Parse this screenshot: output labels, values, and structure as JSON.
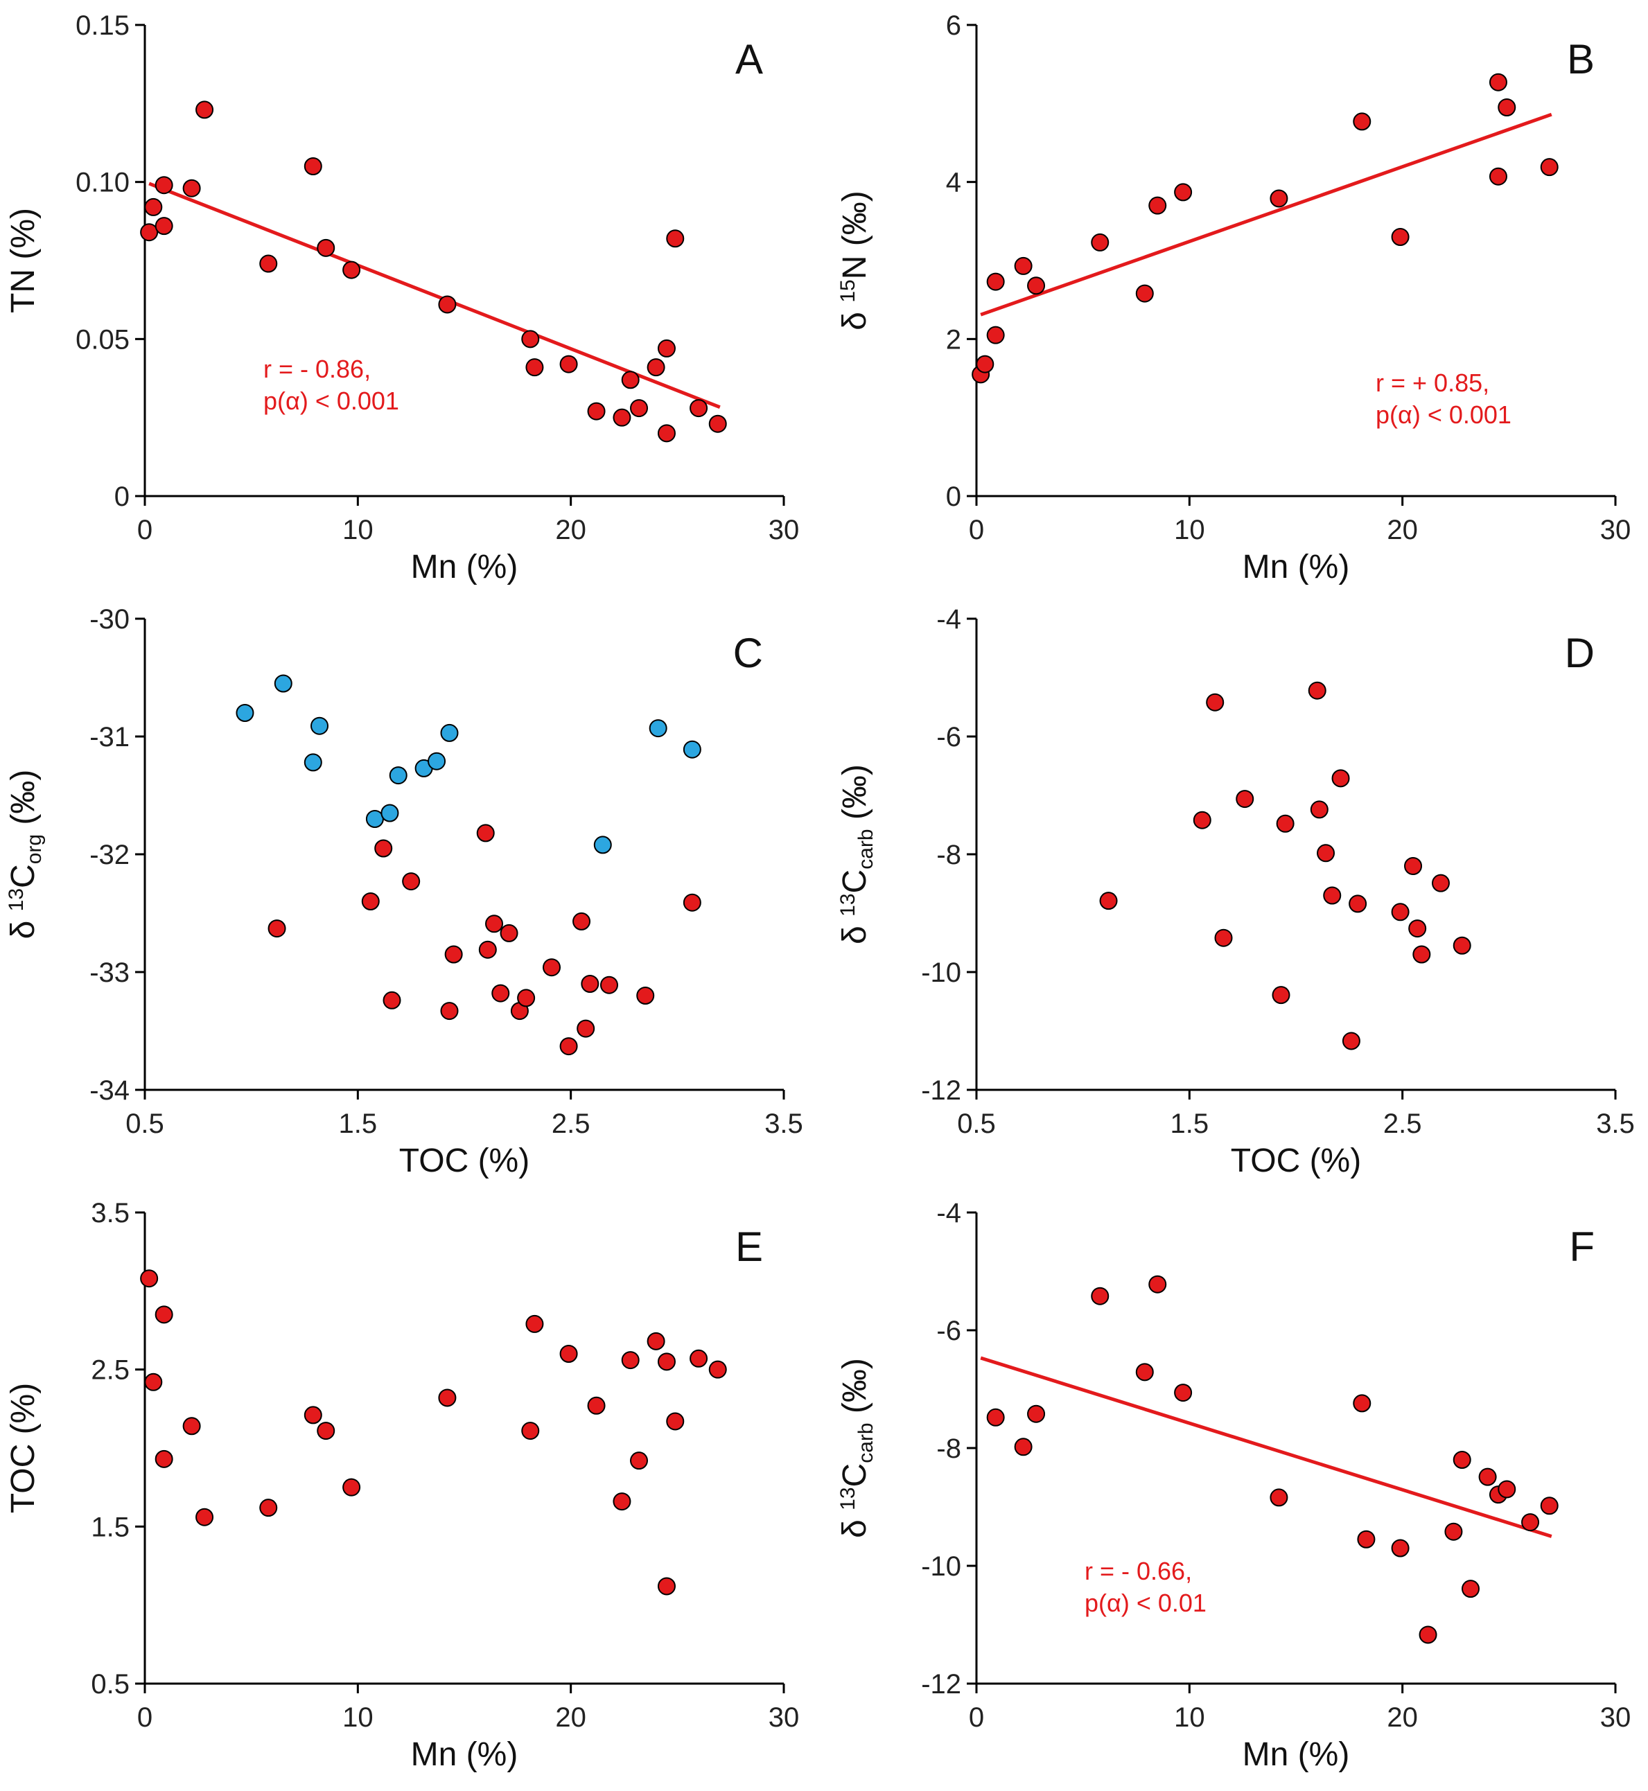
{
  "colors": {
    "red": "#E31A1C",
    "blue": "#2CA6E0",
    "line": "#E31A1C",
    "annot": "#E31A1C"
  },
  "chart_data": [
    {
      "type": "scatter",
      "letter": "A",
      "xlabel": "Mn (%)",
      "ylabel_parts": [
        {
          "t": "TN (%)"
        }
      ],
      "xlim": [
        0,
        30
      ],
      "ylim": [
        0,
        0.15
      ],
      "xticks": [
        0,
        10,
        20,
        30
      ],
      "xtick_labels": [
        "0",
        "10",
        "20",
        "30"
      ],
      "yticks": [
        0,
        0.05,
        0.1,
        0.15
      ],
      "ytick_labels": [
        "0",
        "0.05",
        "0.10",
        "0.15"
      ],
      "series": [
        {
          "name": "samples",
          "color": "red",
          "x": [
            0.2,
            0.4,
            0.9,
            0.9,
            2.2,
            2.8,
            5.8,
            7.9,
            8.5,
            9.7,
            14.2,
            18.1,
            18.3,
            19.9,
            21.2,
            22.4,
            22.8,
            23.2,
            24.0,
            24.5,
            24.5,
            24.9,
            26.0,
            26.9
          ],
          "y": [
            0.084,
            0.092,
            0.086,
            0.099,
            0.098,
            0.123,
            0.074,
            0.105,
            0.079,
            0.072,
            0.061,
            0.05,
            0.041,
            0.042,
            0.027,
            0.025,
            0.037,
            0.028,
            0.041,
            0.047,
            0.02,
            0.082,
            0.028,
            0.023
          ]
        }
      ],
      "fit": {
        "x1": 0.2,
        "y1": 0.0995,
        "x2": 27.0,
        "y2": 0.0283
      },
      "annotation": [
        "r = - 0.86,",
        "p(α) < 0.001"
      ]
    },
    {
      "type": "scatter",
      "letter": "B",
      "xlabel": "Mn (%)",
      "ylabel_parts": [
        {
          "t": "δ "
        },
        {
          "t": "15",
          "sup": true
        },
        {
          "t": "N (‰)"
        }
      ],
      "xlim": [
        0,
        30
      ],
      "ylim": [
        0,
        6
      ],
      "xticks": [
        0,
        10,
        20,
        30
      ],
      "xtick_labels": [
        "0",
        "10",
        "20",
        "30"
      ],
      "yticks": [
        0,
        2,
        4,
        6
      ],
      "ytick_labels": [
        "0",
        "2",
        "4",
        "6"
      ],
      "series": [
        {
          "name": "samples",
          "color": "red",
          "x": [
            0.2,
            0.4,
            0.9,
            0.9,
            2.2,
            2.8,
            5.8,
            7.9,
            8.5,
            9.7,
            14.2,
            18.1,
            19.9,
            24.5,
            24.5,
            24.9,
            26.9
          ],
          "y": [
            1.55,
            1.68,
            2.05,
            2.73,
            2.93,
            2.68,
            3.23,
            2.58,
            3.7,
            3.87,
            3.79,
            4.77,
            3.3,
            4.07,
            5.27,
            4.95,
            4.19
          ]
        }
      ],
      "fit": {
        "x1": 0.2,
        "y1": 2.31,
        "x2": 27.0,
        "y2": 4.86
      },
      "annotation": [
        "r = + 0.85,",
        "p(α) < 0.001"
      ]
    },
    {
      "type": "scatter",
      "letter": "C",
      "xlabel": "TOC (%)",
      "ylabel_parts": [
        {
          "t": "δ "
        },
        {
          "t": "13",
          "sup": true
        },
        {
          "t": "C"
        },
        {
          "t": "org",
          "sub": true
        },
        {
          "t": " (‰)"
        }
      ],
      "xlim": [
        0.5,
        3.5
      ],
      "ylim": [
        -34,
        -30
      ],
      "xticks": [
        0.5,
        1.5,
        2.5,
        3.5
      ],
      "xtick_labels": [
        "0.5",
        "1.5",
        "2.5",
        "3.5"
      ],
      "yticks": [
        -34,
        -33,
        -32,
        -31,
        -30
      ],
      "ytick_labels": [
        "-34",
        "-33",
        "-32",
        "-31",
        "-30"
      ],
      "series": [
        {
          "name": "blue",
          "color": "blue",
          "x": [
            0.97,
            1.15,
            1.29,
            1.32,
            1.58,
            1.65,
            1.69,
            1.81,
            1.87,
            1.93,
            2.65,
            2.91,
            3.07
          ],
          "y": [
            -30.8,
            -30.55,
            -31.22,
            -30.91,
            -31.7,
            -31.65,
            -31.33,
            -31.27,
            -31.21,
            -30.97,
            -31.92,
            -30.93,
            -31.11
          ]
        },
        {
          "name": "red",
          "color": "red",
          "x": [
            1.12,
            1.56,
            1.62,
            1.66,
            1.75,
            1.93,
            1.95,
            2.1,
            2.11,
            2.14,
            2.17,
            2.21,
            2.26,
            2.29,
            2.41,
            2.49,
            2.55,
            2.57,
            2.59,
            2.68,
            2.85,
            3.07
          ],
          "y": [
            -32.63,
            -32.4,
            -31.95,
            -33.24,
            -32.23,
            -33.33,
            -32.85,
            -31.82,
            -32.81,
            -32.59,
            -33.18,
            -32.67,
            -33.33,
            -33.22,
            -32.96,
            -33.63,
            -32.57,
            -33.48,
            -33.1,
            -33.11,
            -33.2,
            -32.41
          ]
        }
      ],
      "fit": null,
      "annotation": null
    },
    {
      "type": "scatter",
      "letter": "D",
      "xlabel": "TOC (%)",
      "ylabel_parts": [
        {
          "t": "δ "
        },
        {
          "t": "13",
          "sup": true
        },
        {
          "t": "C"
        },
        {
          "t": "carb",
          "sub": true
        },
        {
          "t": " (‰)"
        }
      ],
      "xlim": [
        0.5,
        3.5
      ],
      "ylim": [
        -12,
        -4
      ],
      "xticks": [
        0.5,
        1.5,
        2.5,
        3.5
      ],
      "xtick_labels": [
        "0.5",
        "1.5",
        "2.5",
        "3.5"
      ],
      "yticks": [
        -12,
        -10,
        -8,
        -6,
        -4
      ],
      "ytick_labels": [
        "-12",
        "-10",
        "-8",
        "-6",
        "-4"
      ],
      "series": [
        {
          "name": "samples",
          "color": "red",
          "x": [
            1.12,
            1.56,
            1.62,
            1.66,
            1.76,
            1.93,
            1.95,
            2.1,
            2.11,
            2.14,
            2.17,
            2.21,
            2.26,
            2.29,
            2.49,
            2.55,
            2.57,
            2.59,
            2.68,
            2.78
          ],
          "y": [
            -8.79,
            -7.42,
            -5.42,
            -9.42,
            -7.06,
            -10.39,
            -7.48,
            -5.22,
            -7.24,
            -7.98,
            -8.7,
            -6.71,
            -11.17,
            -8.84,
            -8.98,
            -8.2,
            -9.26,
            -9.7,
            -8.49,
            -9.55
          ]
        }
      ],
      "fit": null,
      "annotation": null
    },
    {
      "type": "scatter",
      "letter": "E",
      "xlabel": "Mn (%)",
      "ylabel_parts": [
        {
          "t": "TOC (%)"
        }
      ],
      "xlim": [
        0,
        30
      ],
      "ylim": [
        0.5,
        3.5
      ],
      "xticks": [
        0,
        10,
        20,
        30
      ],
      "xtick_labels": [
        "0",
        "10",
        "20",
        "30"
      ],
      "yticks": [
        0.5,
        1.5,
        2.5,
        3.5
      ],
      "ytick_labels": [
        "0.5",
        "1.5",
        "2.5",
        "3.5"
      ],
      "series": [
        {
          "name": "samples",
          "color": "red",
          "x": [
            0.2,
            0.4,
            0.9,
            0.9,
            2.2,
            2.8,
            5.8,
            7.9,
            8.5,
            9.7,
            14.2,
            18.1,
            18.3,
            19.9,
            21.2,
            22.4,
            22.8,
            23.2,
            24.0,
            24.5,
            24.5,
            24.9,
            26.0,
            26.9
          ],
          "y": [
            3.08,
            2.42,
            1.93,
            2.85,
            2.14,
            1.56,
            1.62,
            2.21,
            2.11,
            1.75,
            2.32,
            2.11,
            2.79,
            2.6,
            2.27,
            1.66,
            2.56,
            1.92,
            2.68,
            2.55,
            1.12,
            2.17,
            2.57,
            2.5
          ]
        }
      ],
      "fit": null,
      "annotation": null
    },
    {
      "type": "scatter",
      "letter": "F",
      "xlabel": "Mn (%)",
      "ylabel_parts": [
        {
          "t": "δ "
        },
        {
          "t": "13",
          "sup": true
        },
        {
          "t": "C"
        },
        {
          "t": "carb",
          "sub": true
        },
        {
          "t": " (‰)"
        }
      ],
      "xlim": [
        0,
        30
      ],
      "ylim": [
        -12,
        -4
      ],
      "xticks": [
        0,
        10,
        20,
        30
      ],
      "xtick_labels": [
        "0",
        "10",
        "20",
        "30"
      ],
      "yticks": [
        -12,
        -10,
        -8,
        -6,
        -4
      ],
      "ytick_labels": [
        "-12",
        "-10",
        "-8",
        "-6",
        "-4"
      ],
      "series": [
        {
          "name": "samples",
          "color": "red",
          "x": [
            0.9,
            2.2,
            2.8,
            5.8,
            7.9,
            8.5,
            9.7,
            14.2,
            18.1,
            18.3,
            19.9,
            21.2,
            22.4,
            22.8,
            23.2,
            24.0,
            24.5,
            24.9,
            26.0,
            26.9
          ],
          "y": [
            -7.48,
            -7.98,
            -7.42,
            -5.42,
            -6.71,
            -5.22,
            -7.06,
            -8.84,
            -7.24,
            -9.55,
            -9.7,
            -11.17,
            -9.42,
            -8.2,
            -10.39,
            -8.49,
            -8.79,
            -8.7,
            -9.26,
            -8.98
          ]
        }
      ],
      "fit": {
        "x1": 0.2,
        "y1": -6.47,
        "x2": 27.0,
        "y2": -9.5
      },
      "annotation": [
        "r = - 0.66,",
        "p(α) < 0.01"
      ]
    }
  ]
}
